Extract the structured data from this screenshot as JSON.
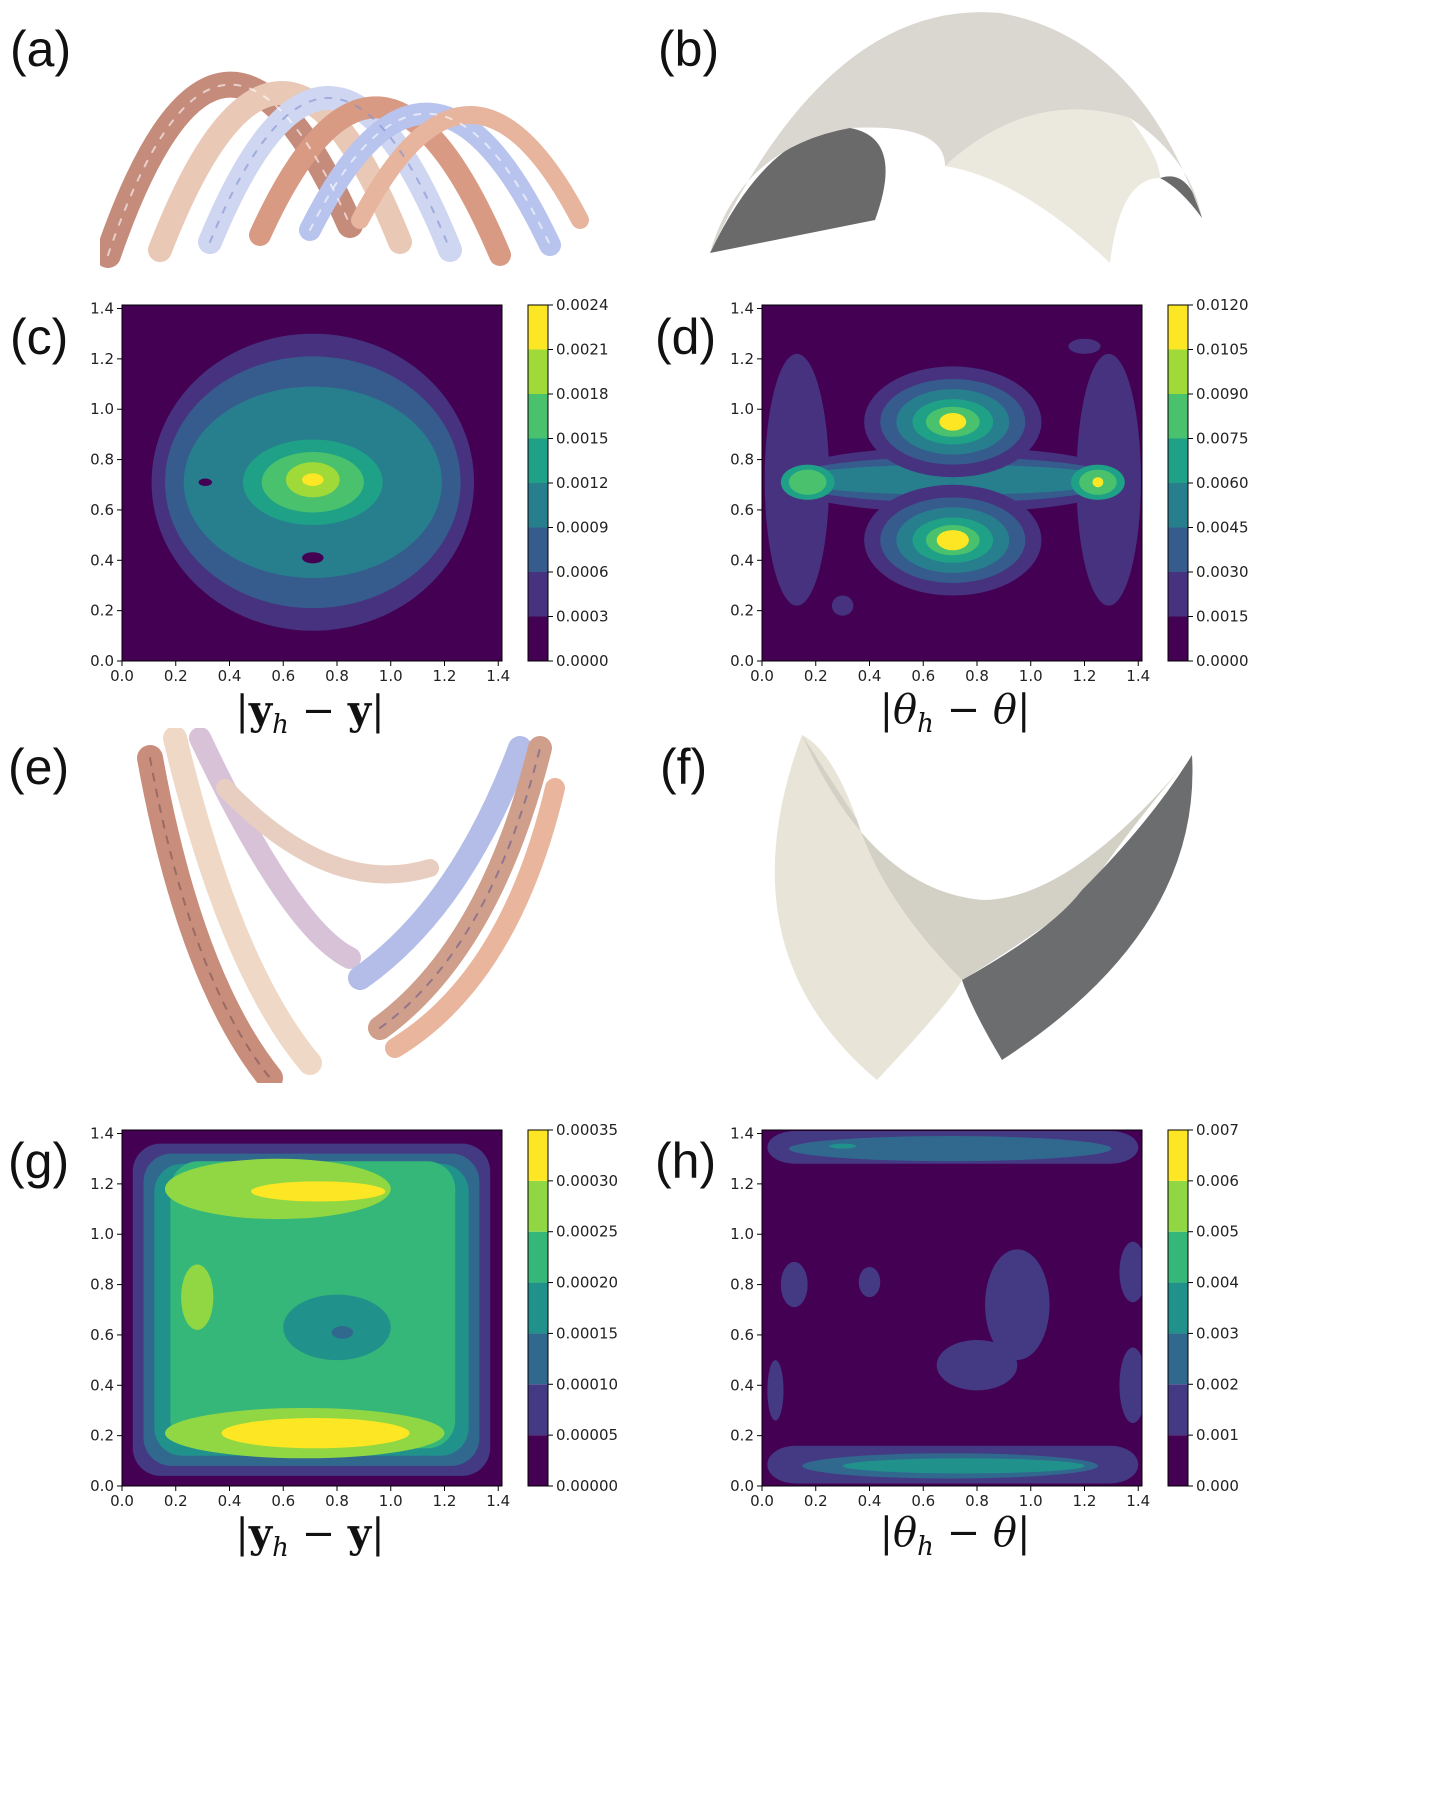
{
  "panels": {
    "a": "(a)",
    "b": "(b)",
    "c": "(c)",
    "d": "(d)",
    "e": "(e)",
    "f": "(f)",
    "g": "(g)",
    "h": "(h)"
  },
  "chart_data": [
    {
      "panel": "(c)",
      "type": "heatmap",
      "xlabel": "|y_h − y|",
      "xlim": [
        0,
        1.414
      ],
      "ylim": [
        0,
        1.414
      ],
      "xticks": [
        "0.0",
        "0.2",
        "0.4",
        "0.6",
        "0.8",
        "1.0",
        "1.2",
        "1.4"
      ],
      "yticks": [
        "0.0",
        "0.2",
        "0.4",
        "0.6",
        "0.8",
        "1.0",
        "1.2",
        "1.4"
      ],
      "colorbar": [
        "0.0000",
        "0.0003",
        "0.0006",
        "0.0009",
        "0.0012",
        "0.0015",
        "0.0018",
        "0.0021",
        "0.0024"
      ],
      "colors": [
        "#440154",
        "#46327e",
        "#365c8d",
        "#277f8e",
        "#1fa187",
        "#4ac16d",
        "#a0da39",
        "#fde725"
      ],
      "levels": [
        {
          "level": 1,
          "shape": "ellipse",
          "cx": 0.71,
          "cy": 0.71,
          "rx": 0.6,
          "ry": 0.59
        },
        {
          "level": 2,
          "shape": "ellipse",
          "cx": 0.71,
          "cy": 0.71,
          "rx": 0.55,
          "ry": 0.5
        },
        {
          "level": 3,
          "shape": "ellipse",
          "cx": 0.71,
          "cy": 0.71,
          "rx": 0.48,
          "ry": 0.38
        },
        {
          "level": 4,
          "shape": "ellipse",
          "cx": 0.71,
          "cy": 0.71,
          "rx": 0.26,
          "ry": 0.17
        },
        {
          "level": 5,
          "shape": "ellipse",
          "cx": 0.71,
          "cy": 0.71,
          "rx": 0.19,
          "ry": 0.12
        },
        {
          "level": 6,
          "shape": "ellipse",
          "cx": 0.71,
          "cy": 0.72,
          "rx": 0.1,
          "ry": 0.07
        },
        {
          "level": 7,
          "shape": "ellipse",
          "cx": 0.71,
          "cy": 0.72,
          "rx": 0.04,
          "ry": 0.025
        },
        {
          "level": 0,
          "shape": "ellipse",
          "cx": 0.31,
          "cy": 0.71,
          "rx": 0.025,
          "ry": 0.015
        },
        {
          "level": 0,
          "shape": "ellipse",
          "cx": 0.71,
          "cy": 0.41,
          "rx": 0.04,
          "ry": 0.022
        }
      ]
    },
    {
      "panel": "(d)",
      "type": "heatmap",
      "xlabel": "|θ_h − θ|",
      "xlim": [
        0,
        1.414
      ],
      "ylim": [
        0,
        1.414
      ],
      "xticks": [
        "0.0",
        "0.2",
        "0.4",
        "0.6",
        "0.8",
        "1.0",
        "1.2",
        "1.4"
      ],
      "yticks": [
        "0.0",
        "0.2",
        "0.4",
        "0.6",
        "0.8",
        "1.0",
        "1.2",
        "1.4"
      ],
      "colorbar": [
        "0.0000",
        "0.0015",
        "0.0030",
        "0.0045",
        "0.0060",
        "0.0075",
        "0.0090",
        "0.0105",
        "0.0120"
      ],
      "colors": [
        "#440154",
        "#46327e",
        "#365c8d",
        "#277f8e",
        "#1fa187",
        "#4ac16d",
        "#a0da39",
        "#fde725"
      ],
      "levels": [
        {
          "level": 1,
          "shape": "ellipse",
          "cx": 0.13,
          "cy": 0.72,
          "rx": 0.12,
          "ry": 0.5
        },
        {
          "level": 1,
          "shape": "ellipse",
          "cx": 1.29,
          "cy": 0.72,
          "rx": 0.12,
          "ry": 0.5
        },
        {
          "level": 1,
          "shape": "ellipse",
          "cx": 0.71,
          "cy": 0.72,
          "rx": 0.65,
          "ry": 0.13
        },
        {
          "level": 2,
          "shape": "ellipse",
          "cx": 0.71,
          "cy": 0.72,
          "rx": 0.62,
          "ry": 0.09
        },
        {
          "level": 3,
          "shape": "ellipse",
          "cx": 0.71,
          "cy": 0.72,
          "rx": 0.6,
          "ry": 0.06
        },
        {
          "level": 1,
          "shape": "ellipse",
          "cx": 0.71,
          "cy": 0.95,
          "rx": 0.33,
          "ry": 0.22
        },
        {
          "level": 2,
          "shape": "ellipse",
          "cx": 0.71,
          "cy": 0.95,
          "rx": 0.27,
          "ry": 0.17
        },
        {
          "level": 3,
          "shape": "ellipse",
          "cx": 0.71,
          "cy": 0.95,
          "rx": 0.21,
          "ry": 0.13
        },
        {
          "level": 4,
          "shape": "ellipse",
          "cx": 0.71,
          "cy": 0.95,
          "rx": 0.15,
          "ry": 0.09
        },
        {
          "level": 5,
          "shape": "ellipse",
          "cx": 0.71,
          "cy": 0.95,
          "rx": 0.1,
          "ry": 0.06
        },
        {
          "level": 7,
          "shape": "ellipse",
          "cx": 0.71,
          "cy": 0.95,
          "rx": 0.05,
          "ry": 0.035
        },
        {
          "level": 1,
          "shape": "ellipse",
          "cx": 0.71,
          "cy": 0.48,
          "rx": 0.33,
          "ry": 0.22
        },
        {
          "level": 2,
          "shape": "ellipse",
          "cx": 0.71,
          "cy": 0.48,
          "rx": 0.27,
          "ry": 0.17
        },
        {
          "level": 3,
          "shape": "ellipse",
          "cx": 0.71,
          "cy": 0.48,
          "rx": 0.21,
          "ry": 0.13
        },
        {
          "level": 4,
          "shape": "ellipse",
          "cx": 0.71,
          "cy": 0.48,
          "rx": 0.15,
          "ry": 0.09
        },
        {
          "level": 5,
          "shape": "ellipse",
          "cx": 0.71,
          "cy": 0.48,
          "rx": 0.1,
          "ry": 0.06
        },
        {
          "level": 7,
          "shape": "ellipse",
          "cx": 0.71,
          "cy": 0.48,
          "rx": 0.06,
          "ry": 0.04
        },
        {
          "level": 4,
          "shape": "ellipse",
          "cx": 0.17,
          "cy": 0.71,
          "rx": 0.1,
          "ry": 0.07
        },
        {
          "level": 5,
          "shape": "ellipse",
          "cx": 0.17,
          "cy": 0.71,
          "rx": 0.07,
          "ry": 0.05
        },
        {
          "level": 4,
          "shape": "ellipse",
          "cx": 1.25,
          "cy": 0.71,
          "rx": 0.1,
          "ry": 0.07
        },
        {
          "level": 5,
          "shape": "ellipse",
          "cx": 1.25,
          "cy": 0.71,
          "rx": 0.07,
          "ry": 0.05
        },
        {
          "level": 7,
          "shape": "ellipse",
          "cx": 1.25,
          "cy": 0.71,
          "rx": 0.02,
          "ry": 0.02
        },
        {
          "level": 1,
          "shape": "ellipse",
          "cx": 1.2,
          "cy": 1.25,
          "rx": 0.06,
          "ry": 0.03
        },
        {
          "level": 1,
          "shape": "ellipse",
          "cx": 0.3,
          "cy": 0.22,
          "rx": 0.04,
          "ry": 0.04
        }
      ]
    },
    {
      "panel": "(g)",
      "type": "heatmap",
      "xlabel": "|y_h − y|",
      "xlim": [
        0,
        1.414
      ],
      "ylim": [
        0,
        1.414
      ],
      "xticks": [
        "0.0",
        "0.2",
        "0.4",
        "0.6",
        "0.8",
        "1.0",
        "1.2",
        "1.4"
      ],
      "yticks": [
        "0.0",
        "0.2",
        "0.4",
        "0.6",
        "0.8",
        "1.0",
        "1.2",
        "1.4"
      ],
      "colorbar": [
        "0.00000",
        "0.00005",
        "0.00010",
        "0.00015",
        "0.00020",
        "0.00025",
        "0.00030",
        "0.00035"
      ],
      "colors": [
        "#440154",
        "#443983",
        "#31688e",
        "#21918c",
        "#35b779",
        "#90d743",
        "#fde725"
      ],
      "levels": [
        {
          "level": 1,
          "shape": "rect",
          "x": 0.04,
          "y": 0.04,
          "w": 1.33,
          "h": 1.32
        },
        {
          "level": 2,
          "shape": "rect",
          "x": 0.08,
          "y": 0.08,
          "w": 1.25,
          "h": 1.24
        },
        {
          "level": 3,
          "shape": "rect",
          "x": 0.12,
          "y": 0.12,
          "w": 1.17,
          "h": 1.16
        },
        {
          "level": 4,
          "shape": "rect",
          "x": 0.18,
          "y": 0.15,
          "w": 1.06,
          "h": 1.14
        },
        {
          "level": 5,
          "shape": "ellipse",
          "cx": 0.68,
          "cy": 0.21,
          "rx": 0.52,
          "ry": 0.1
        },
        {
          "level": 5,
          "shape": "ellipse",
          "cx": 0.58,
          "cy": 1.18,
          "rx": 0.42,
          "ry": 0.12
        },
        {
          "level": 5,
          "shape": "ellipse",
          "cx": 0.28,
          "cy": 0.75,
          "rx": 0.06,
          "ry": 0.13
        },
        {
          "level": 6,
          "shape": "ellipse",
          "cx": 0.72,
          "cy": 0.21,
          "rx": 0.35,
          "ry": 0.06
        },
        {
          "level": 6,
          "shape": "ellipse",
          "cx": 0.73,
          "cy": 1.17,
          "rx": 0.25,
          "ry": 0.04
        },
        {
          "level": 3,
          "shape": "ellipse",
          "cx": 0.8,
          "cy": 0.63,
          "rx": 0.2,
          "ry": 0.13
        },
        {
          "level": 2,
          "shape": "ellipse",
          "cx": 0.82,
          "cy": 0.61,
          "rx": 0.04,
          "ry": 0.025
        }
      ]
    },
    {
      "panel": "(h)",
      "type": "heatmap",
      "xlabel": "|θ_h − θ|",
      "xlim": [
        0,
        1.414
      ],
      "ylim": [
        0,
        1.414
      ],
      "xticks": [
        "0.0",
        "0.2",
        "0.4",
        "0.6",
        "0.8",
        "1.0",
        "1.2",
        "1.4"
      ],
      "yticks": [
        "0.0",
        "0.2",
        "0.4",
        "0.6",
        "0.8",
        "1.0",
        "1.2",
        "1.4"
      ],
      "colorbar": [
        "0.000",
        "0.001",
        "0.002",
        "0.003",
        "0.004",
        "0.005",
        "0.006",
        "0.007"
      ],
      "colors": [
        "#440154",
        "#443983",
        "#31688e",
        "#21918c",
        "#35b779",
        "#90d743",
        "#fde725"
      ],
      "levels": [
        {
          "level": 1,
          "shape": "rect",
          "x": 0.02,
          "y": 0.01,
          "w": 1.38,
          "h": 0.15
        },
        {
          "level": 2,
          "shape": "ellipse",
          "cx": 0.7,
          "cy": 0.08,
          "rx": 0.55,
          "ry": 0.05
        },
        {
          "level": 3,
          "shape": "ellipse",
          "cx": 0.75,
          "cy": 0.08,
          "rx": 0.45,
          "ry": 0.03
        },
        {
          "level": 1,
          "shape": "rect",
          "x": 0.02,
          "y": 1.28,
          "w": 1.38,
          "h": 0.13
        },
        {
          "level": 2,
          "shape": "ellipse",
          "cx": 0.7,
          "cy": 1.34,
          "rx": 0.6,
          "ry": 0.05
        },
        {
          "level": 3,
          "shape": "ellipse",
          "cx": 0.3,
          "cy": 1.35,
          "rx": 0.05,
          "ry": 0.01
        },
        {
          "level": 1,
          "shape": "ellipse",
          "cx": 0.12,
          "cy": 0.8,
          "rx": 0.05,
          "ry": 0.09
        },
        {
          "level": 1,
          "shape": "ellipse",
          "cx": 0.4,
          "cy": 0.81,
          "rx": 0.04,
          "ry": 0.06
        },
        {
          "level": 1,
          "shape": "ellipse",
          "cx": 0.95,
          "cy": 0.72,
          "rx": 0.12,
          "ry": 0.22
        },
        {
          "level": 1,
          "shape": "ellipse",
          "cx": 0.8,
          "cy": 0.48,
          "rx": 0.15,
          "ry": 0.1
        },
        {
          "level": 1,
          "shape": "ellipse",
          "cx": 0.05,
          "cy": 0.38,
          "rx": 0.03,
          "ry": 0.12
        },
        {
          "level": 1,
          "shape": "ellipse",
          "cx": 1.38,
          "cy": 0.4,
          "rx": 0.05,
          "ry": 0.15
        },
        {
          "level": 1,
          "shape": "ellipse",
          "cx": 1.38,
          "cy": 0.85,
          "rx": 0.05,
          "ry": 0.12
        }
      ]
    }
  ]
}
